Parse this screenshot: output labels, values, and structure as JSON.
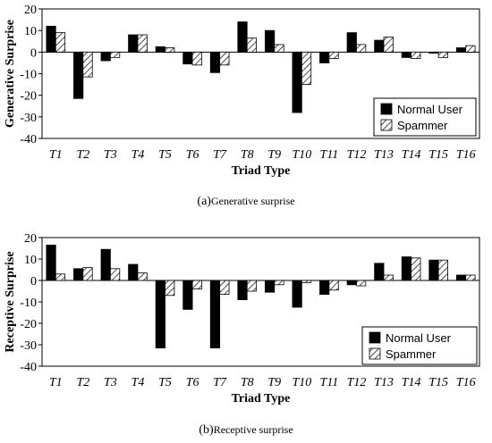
{
  "chart_data": [
    {
      "type": "bar",
      "ylabel": "Generative Surprise",
      "xlabel": "Triad Type",
      "categories": [
        "T1",
        "T2",
        "T3",
        "T4",
        "T5",
        "T6",
        "T7",
        "T8",
        "T9",
        "T10",
        "T11",
        "T12",
        "T13",
        "T14",
        "T15",
        "T16"
      ],
      "ylim": [
        -40,
        20
      ],
      "yticks": [
        20,
        10,
        0,
        -10,
        -20,
        -30,
        -40
      ],
      "grid": false,
      "legend_position": "bottom-right",
      "series": [
        {
          "name": "Normal User",
          "color": "#000000",
          "pattern": "solid",
          "values": [
            12,
            -21.5,
            -4,
            8,
            2.5,
            -5.5,
            -9.5,
            14,
            10,
            -28,
            -5,
            9,
            5.5,
            -2.5,
            -0.5,
            2
          ]
        },
        {
          "name": "Spammer",
          "color": "#000000",
          "pattern": "hatch",
          "values": [
            9,
            -11.5,
            -2.5,
            8,
            2,
            -6,
            -6,
            6.5,
            3.5,
            -15,
            -3,
            3.5,
            7,
            -3,
            -2.5,
            3
          ]
        }
      ],
      "caption_paren_open": "(",
      "caption_letter": "a",
      "caption_paren_close": ")",
      "caption_text": "Generative surprise"
    },
    {
      "type": "bar",
      "ylabel": "Receptive Surprise",
      "xlabel": "Triad Type",
      "categories": [
        "T1",
        "T2",
        "T3",
        "T4",
        "T5",
        "T6",
        "T7",
        "T8",
        "T9",
        "T10",
        "T11",
        "T12",
        "T13",
        "T14",
        "T15",
        "T16"
      ],
      "ylim": [
        -40,
        20
      ],
      "yticks": [
        20,
        10,
        0,
        -10,
        -20,
        -30,
        -40
      ],
      "grid": false,
      "legend_position": "bottom-right",
      "series": [
        {
          "name": "Normal User",
          "color": "#000000",
          "pattern": "solid",
          "values": [
            16.5,
            5.5,
            14.5,
            7.5,
            -31.5,
            -13.5,
            -31.5,
            -9,
            -5.5,
            -12.5,
            -6.5,
            -2,
            8,
            11,
            9.5,
            2.5
          ]
        },
        {
          "name": "Spammer",
          "color": "#000000",
          "pattern": "hatch",
          "values": [
            3,
            6,
            5.5,
            3.5,
            -7,
            -4,
            -6.5,
            -5,
            -2,
            -1,
            -4.5,
            -2.5,
            2.5,
            10.5,
            9.5,
            2.5
          ]
        }
      ],
      "caption_paren_open": "(",
      "caption_letter": "b",
      "caption_paren_close": ")",
      "caption_text": "Receptive surprise"
    }
  ]
}
